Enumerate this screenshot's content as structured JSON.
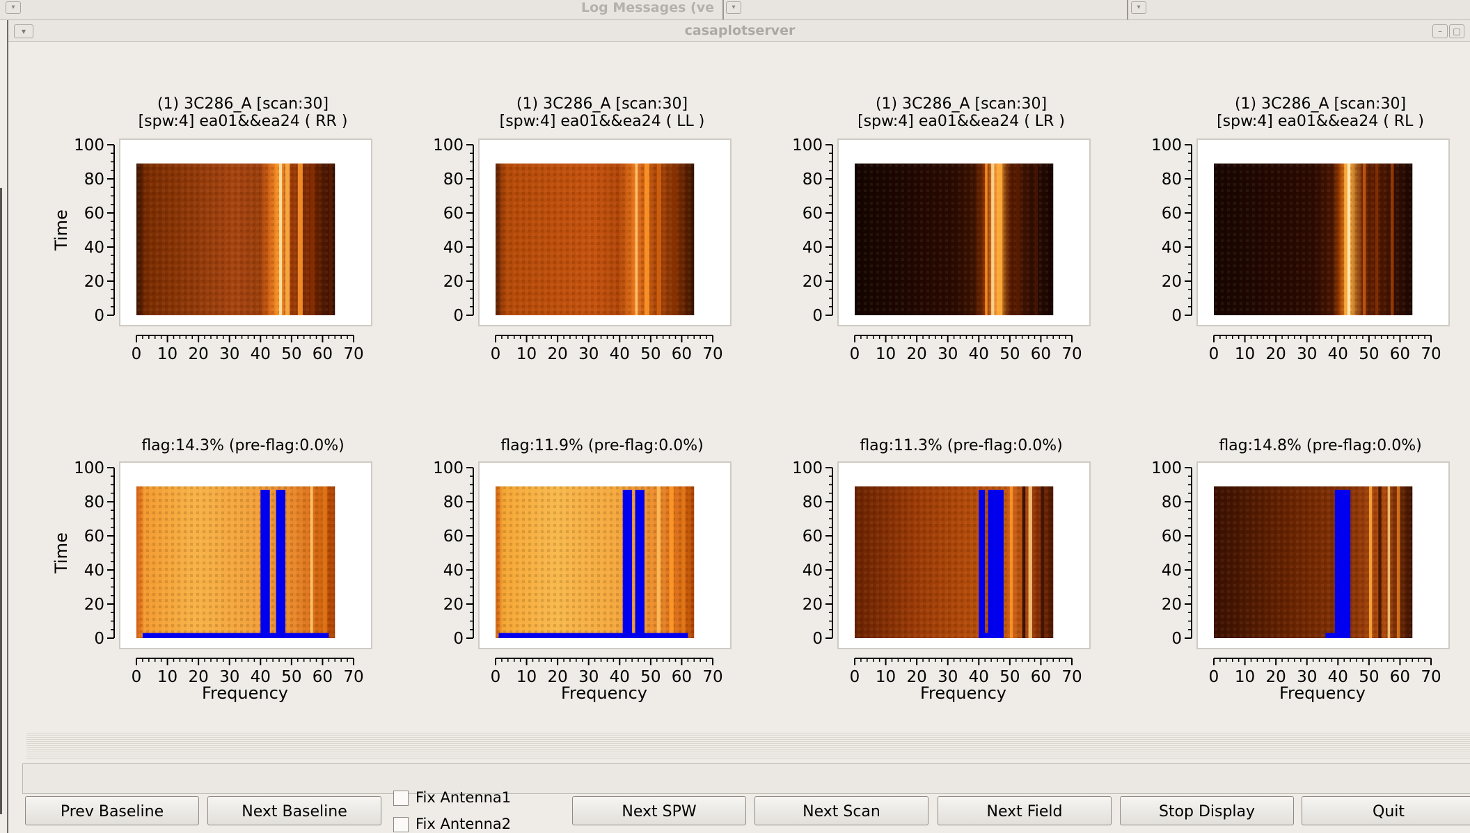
{
  "background_window": {
    "title": "Log Messages (ve"
  },
  "window": {
    "title": "casaplotserver"
  },
  "panels": [
    {
      "title_line1": "(1) 3C286_A  [scan:30]",
      "title_line2": "[spw:4] ea01&&ea24  ( RR )"
    },
    {
      "title_line1": "(1) 3C286_A  [scan:30]",
      "title_line2": "[spw:4] ea01&&ea24  ( LL )"
    },
    {
      "title_line1": "(1) 3C286_A  [scan:30]",
      "title_line2": "[spw:4] ea01&&ea24  ( LR )"
    },
    {
      "title_line1": "(1) 3C286_A  [scan:30]",
      "title_line2": "[spw:4] ea01&&ea24  ( RL )"
    },
    {
      "title_line1": "flag:14.3% (pre-flag:0.0%)"
    },
    {
      "title_line1": "flag:11.9% (pre-flag:0.0%)"
    },
    {
      "title_line1": "flag:11.3% (pre-flag:0.0%)"
    },
    {
      "title_line1": "flag:14.8% (pre-flag:0.0%)"
    }
  ],
  "axes": {
    "ylabel": "Time",
    "xlabel": "Frequency",
    "x_ticks": [
      "0",
      "10",
      "20",
      "30",
      "40",
      "50",
      "60",
      "70"
    ],
    "y_ticks": [
      "0",
      "20",
      "40",
      "60",
      "80",
      "100"
    ],
    "xlim": [
      0,
      70
    ],
    "ylim": [
      0,
      100
    ]
  },
  "colors": {
    "flagged": "#0000ee",
    "colormap": "hot"
  },
  "controls": {
    "prev_baseline": "Prev Baseline",
    "next_baseline": "Next Baseline",
    "fix_antenna1": "Fix Antenna1",
    "fix_antenna2": "Fix Antenna2",
    "next_spw": "Next SPW",
    "next_scan": "Next Scan",
    "next_field": "Next Field",
    "stop_display": "Stop Display",
    "quit": "Quit"
  }
}
